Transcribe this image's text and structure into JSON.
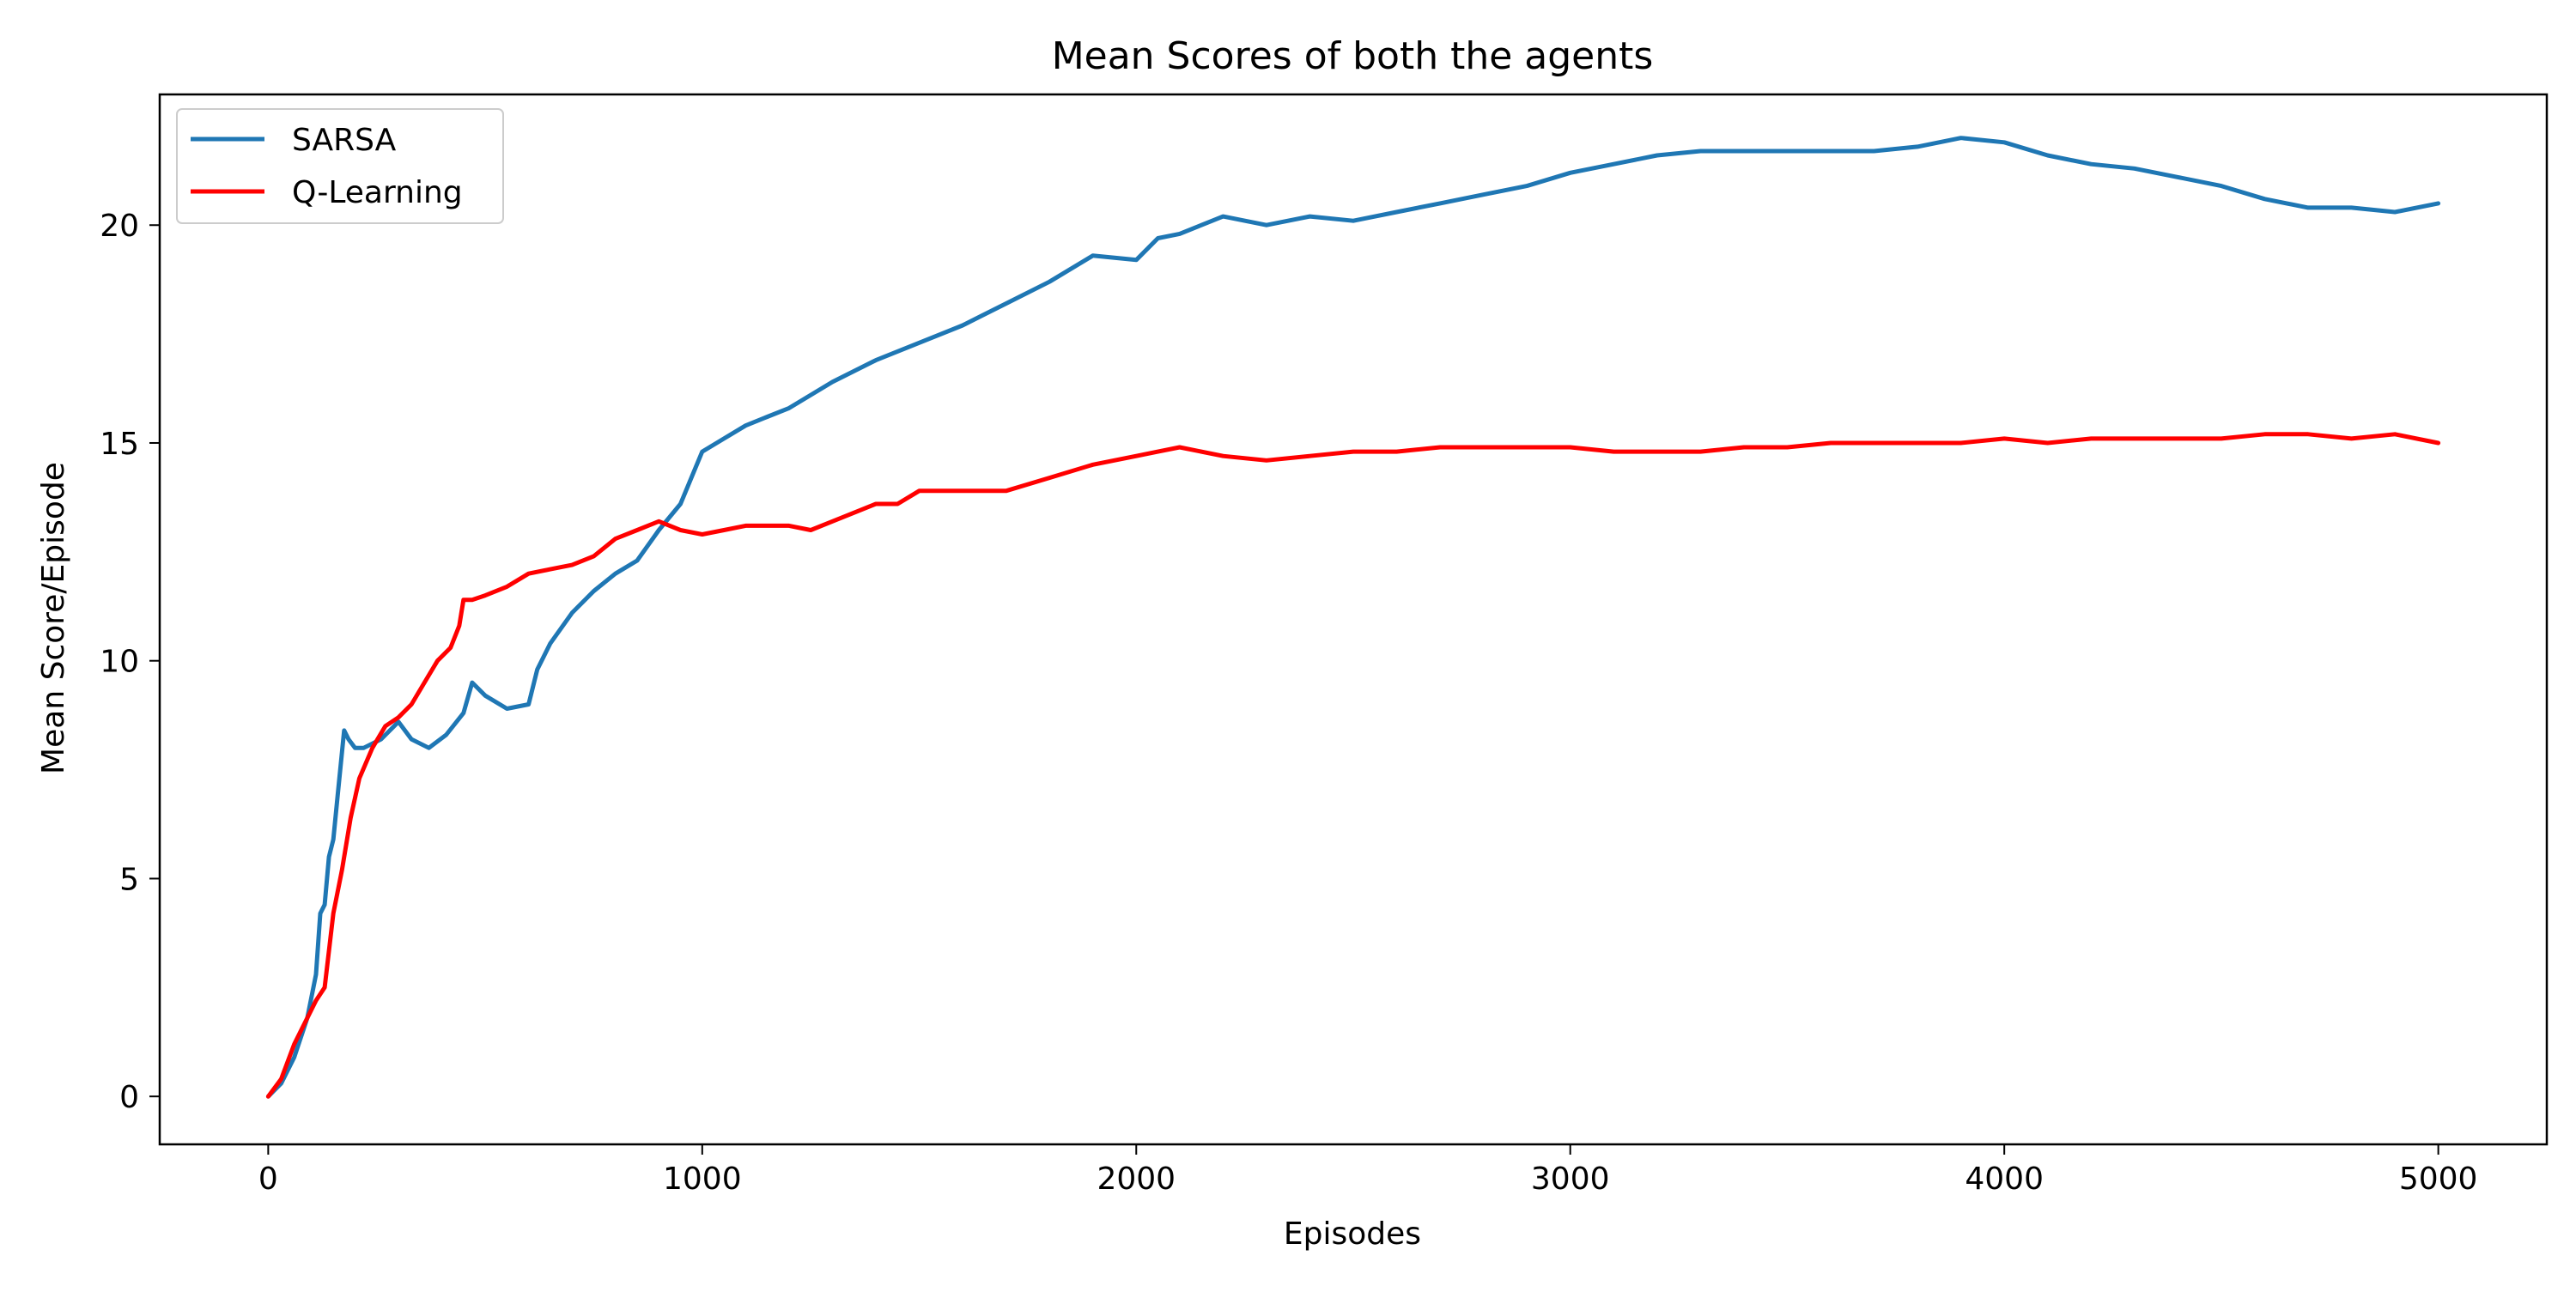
{
  "chart_data": {
    "type": "line",
    "title": "Mean Scores of both the agents",
    "xlabel": "Episodes",
    "ylabel": "Mean Score/Episode",
    "xlim": [
      -250,
      5250
    ],
    "ylim": [
      -1.1,
      23.0
    ],
    "xticks": [
      0,
      1000,
      2000,
      3000,
      4000,
      5000
    ],
    "xtick_labels": [
      "0",
      "1000",
      "2000",
      "3000",
      "4000",
      "5000"
    ],
    "yticks": [
      0,
      5,
      10,
      15,
      20
    ],
    "ytick_labels": [
      "0",
      "5",
      "10",
      "15",
      "20"
    ],
    "grid": false,
    "legend": "top-left",
    "series": [
      {
        "name": "SARSA",
        "color": "#1f77b4",
        "x": [
          0,
          30,
          60,
          90,
          110,
          120,
          130,
          140,
          150,
          160,
          175,
          185,
          200,
          220,
          260,
          300,
          330,
          370,
          410,
          450,
          470,
          500,
          550,
          600,
          620,
          650,
          700,
          750,
          800,
          850,
          900,
          950,
          1000,
          1050,
          1100,
          1150,
          1200,
          1300,
          1400,
          1500,
          1600,
          1700,
          1800,
          1900,
          2000,
          2050,
          2100,
          2200,
          2300,
          2400,
          2500,
          2600,
          2700,
          2800,
          2900,
          3000,
          3100,
          3200,
          3300,
          3400,
          3500,
          3600,
          3700,
          3800,
          3900,
          4000,
          4100,
          4200,
          4300,
          4400,
          4500,
          4600,
          4700,
          4800,
          4900,
          5000
        ],
        "y": [
          0.0,
          0.3,
          0.9,
          1.8,
          2.8,
          4.2,
          4.4,
          5.5,
          5.9,
          6.9,
          8.4,
          8.2,
          8.0,
          8.0,
          8.2,
          8.6,
          8.2,
          8.0,
          8.3,
          8.8,
          9.5,
          9.2,
          8.9,
          9.0,
          9.8,
          10.4,
          11.1,
          11.6,
          12.0,
          12.3,
          13.0,
          13.6,
          14.8,
          15.1,
          15.4,
          15.6,
          15.8,
          16.4,
          16.9,
          17.3,
          17.7,
          18.2,
          18.7,
          19.3,
          19.2,
          19.7,
          19.8,
          20.2,
          20.0,
          20.2,
          20.1,
          20.3,
          20.5,
          20.7,
          20.9,
          21.2,
          21.4,
          21.6,
          21.7,
          21.7,
          21.7,
          21.7,
          21.7,
          21.8,
          22.0,
          21.9,
          21.6,
          21.4,
          21.3,
          21.1,
          20.9,
          20.6,
          20.4,
          20.4,
          20.3,
          20.5
        ]
      },
      {
        "name": "Q-Learning",
        "color": "#ff0000",
        "x": [
          0,
          30,
          60,
          90,
          110,
          130,
          150,
          170,
          190,
          210,
          240,
          270,
          300,
          330,
          360,
          390,
          420,
          440,
          450,
          470,
          500,
          550,
          600,
          650,
          700,
          750,
          800,
          850,
          900,
          950,
          1000,
          1050,
          1100,
          1150,
          1200,
          1250,
          1300,
          1350,
          1400,
          1450,
          1500,
          1600,
          1700,
          1800,
          1900,
          2000,
          2050,
          2100,
          2200,
          2300,
          2400,
          2500,
          2600,
          2700,
          2800,
          2900,
          3000,
          3100,
          3200,
          3300,
          3400,
          3500,
          3600,
          3700,
          3800,
          3900,
          4000,
          4100,
          4200,
          4300,
          4400,
          4500,
          4600,
          4700,
          4800,
          4900,
          5000
        ],
        "y": [
          0.0,
          0.4,
          1.2,
          1.8,
          2.2,
          2.5,
          4.2,
          5.2,
          6.4,
          7.3,
          8.0,
          8.5,
          8.7,
          9.0,
          9.5,
          10.0,
          10.3,
          10.8,
          11.4,
          11.4,
          11.5,
          11.7,
          12.0,
          12.1,
          12.2,
          12.4,
          12.8,
          13.0,
          13.2,
          13.0,
          12.9,
          13.0,
          13.1,
          13.1,
          13.1,
          13.0,
          13.2,
          13.4,
          13.6,
          13.6,
          13.9,
          13.9,
          13.9,
          14.2,
          14.5,
          14.7,
          14.8,
          14.9,
          14.7,
          14.6,
          14.7,
          14.8,
          14.8,
          14.9,
          14.9,
          14.9,
          14.9,
          14.8,
          14.8,
          14.8,
          14.9,
          14.9,
          15.0,
          15.0,
          15.0,
          15.0,
          15.1,
          15.0,
          15.1,
          15.1,
          15.1,
          15.1,
          15.2,
          15.2,
          15.1,
          15.2,
          15.0
        ]
      }
    ]
  }
}
